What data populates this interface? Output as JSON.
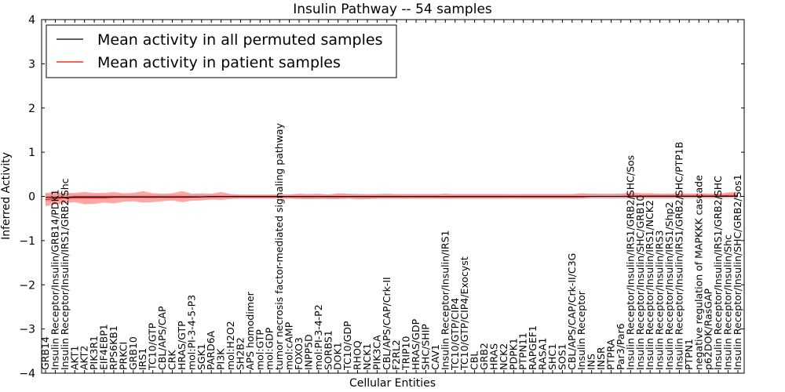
{
  "chart_data": {
    "type": "line",
    "title": "Insulin Pathway -- 54 samples",
    "xlabel": "Cellular Entities",
    "ylabel": "Inferred Activity",
    "ylim": [
      -4,
      4
    ],
    "yticks": [
      -4,
      -3,
      -2,
      -1,
      0,
      1,
      2,
      3,
      4
    ],
    "grid": false,
    "legend_position": "top-left",
    "categories": [
      "GRB14",
      "Insulin Receptor/Insulin/GRB14/PDK1",
      "Insulin Receptor/Insulin/IRS1/GRB2/Shc",
      "AKT1",
      "AKT2",
      "PIK3R1",
      "EIF4EBP1",
      "RPS6KB1",
      "PRKCI",
      "GRB10",
      "IRS1",
      "TC10/GTP",
      "CBL/APS/CAP",
      "CRK",
      "HRAS/GTP",
      "mol:PI-3-4-5-P3",
      "SGK1",
      "PARD6A",
      "PI3K",
      "mol:H2O2",
      "SH2B2",
      "APS homodimer",
      "mol:GTP",
      "mol:GDP",
      "tumor necrosis factor-mediated signaling pathway",
      "mol:cAMP",
      "FOXO3",
      "INPP5D",
      "mol:PI-3-4-P2",
      "SORBS1",
      "DOK1",
      "TC10/GDP",
      "RHOQ",
      "NCK1",
      "PIK3CA",
      "CBL/APS/CAP/Crk-II",
      "F2RL2",
      "TRIP10",
      "HRAS/GDP",
      "SHC/SHIP",
      "CAV1",
      "Insulin Receptor/Insulin/IRS1",
      "TC10/GTP/CIP4",
      "TC10/GTP/CIP4/Exocyst",
      "CBL",
      "GRB2",
      "HRAS",
      "NCK2",
      "PDPK1",
      "PTPN11",
      "RAPGEF1",
      "RASA1",
      "SHC1",
      "SOS1",
      "CBL/APS/CAP/Crk-II/C3G",
      "Insulin Receptor",
      "INS",
      "INSR",
      "PTPRA",
      "Par3/Par6",
      "Insulin Receptor/Insulin/IRS1/GRB2/SHC/Sos",
      "Insulin Receptor/Insulin/SHC/GRB10",
      "Insulin Receptor/Insulin/IRS1/NCK2",
      "Insulin Receptor/Insulin/IRS3",
      "Insulin Receptor/Insulin/IRS1/Shp2",
      "Insulin Receptor/Insulin/IRS1/GRB2/SHC/PTP1B",
      "PTPN1",
      "negative regulation of MAPKKK cascade",
      "p62DOK/RasGAP",
      "Insulin Receptor/Insulin/IRS1/GRB2/SHC",
      "Insulin Receptor/Insulin/Shc",
      "Insulin Receptor/Insulin/SHC/GRB2/Sos1"
    ],
    "series": [
      {
        "name": "Mean activity in all permuted samples",
        "color": "#000000",
        "values": [
          -0.02,
          -0.02,
          -0.02,
          -0.01,
          -0.01,
          -0.01,
          -0.01,
          -0.01,
          -0.01,
          -0.01,
          -0.01,
          -0.01,
          -0.01,
          -0.01,
          -0.01,
          -0.01,
          -0.01,
          0,
          0,
          0,
          0,
          0,
          0,
          0,
          0,
          0,
          0,
          0,
          0,
          0,
          0,
          0,
          0,
          0,
          0,
          0,
          0,
          0,
          0,
          0,
          0,
          0,
          0,
          0,
          0,
          0,
          0,
          0,
          0,
          0,
          0,
          0,
          0,
          0,
          0,
          0,
          0,
          0,
          0,
          0,
          0,
          0,
          0,
          0,
          0,
          0,
          0,
          0,
          0,
          0,
          0,
          0
        ],
        "band_lower": [
          -0.12,
          -0.1,
          -0.08,
          -0.06,
          -0.05,
          -0.05,
          -0.06,
          -0.05,
          -0.04,
          -0.05,
          -0.05,
          -0.06,
          -0.05,
          -0.06,
          -0.05,
          -0.04,
          -0.05,
          -0.05,
          -0.04,
          -0.04,
          -0.04,
          -0.04,
          -0.04,
          -0.04,
          -0.05,
          -0.05,
          -0.05,
          -0.06,
          -0.05,
          -0.05,
          -0.06,
          -0.05,
          -0.08,
          -0.06,
          -0.05,
          -0.05,
          -0.05,
          -0.06,
          -0.05,
          -0.05,
          -0.05,
          -0.06,
          -0.05,
          -0.05,
          -0.05,
          -0.05,
          -0.05,
          -0.05,
          -0.04,
          -0.05,
          -0.05,
          -0.05,
          -0.05,
          -0.05,
          -0.05,
          -0.05,
          -0.05,
          -0.05,
          -0.06,
          -0.05,
          -0.06,
          -0.06,
          -0.06,
          -0.06,
          -0.06,
          -0.06,
          -0.06,
          -0.06,
          -0.06,
          -0.06,
          -0.06,
          -0.06
        ],
        "band_upper": [
          0.05,
          0.04,
          0.04,
          0.04,
          0.04,
          0.04,
          0.04,
          0.04,
          0.04,
          0.04,
          0.04,
          0.04,
          0.04,
          0.04,
          0.04,
          0.04,
          0.04,
          0.04,
          0.04,
          0.04,
          0.04,
          0.04,
          0.04,
          0.04,
          0.05,
          0.05,
          0.05,
          0.05,
          0.05,
          0.05,
          0.05,
          0.05,
          0.06,
          0.05,
          0.05,
          0.05,
          0.05,
          0.05,
          0.05,
          0.05,
          0.05,
          0.05,
          0.05,
          0.05,
          0.05,
          0.05,
          0.05,
          0.05,
          0.04,
          0.05,
          0.05,
          0.05,
          0.05,
          0.05,
          0.05,
          0.05,
          0.05,
          0.05,
          0.05,
          0.05,
          0.05,
          0.05,
          0.05,
          0.05,
          0.05,
          0.05,
          0.05,
          0.05,
          0.05,
          0.05,
          0.05,
          0.05
        ]
      },
      {
        "name": "Mean activity in patient samples",
        "color": "#ff0000",
        "values": [
          -0.07,
          -0.05,
          -0.03,
          -0.03,
          -0.03,
          -0.03,
          -0.03,
          -0.02,
          -0.02,
          -0.02,
          -0.02,
          -0.02,
          -0.02,
          -0.02,
          -0.02,
          -0.02,
          -0.01,
          -0.01,
          -0.01,
          -0.01,
          -0.01,
          -0.01,
          -0.01,
          -0.01,
          -0.01,
          -0.01,
          -0.01,
          -0.01,
          -0.01,
          -0.01,
          -0.01,
          -0.01,
          -0.01,
          -0.01,
          -0.01,
          -0.01,
          -0.01,
          -0.01,
          -0.01,
          -0.01,
          -0.01,
          -0.01,
          -0.01,
          -0.01,
          -0.01,
          -0.01,
          -0.01,
          -0.01,
          -0.01,
          -0.01,
          -0.01,
          -0.01,
          -0.01,
          -0.01,
          -0.01,
          -0.01,
          0,
          0,
          0,
          0,
          0.01,
          0.01,
          0.01,
          0.01,
          0.01,
          0.01,
          0.01,
          0.01,
          0.01,
          0.01,
          0.02,
          0.02
        ],
        "band_lower": [
          -0.22,
          -0.18,
          -0.15,
          -0.13,
          -0.18,
          -0.17,
          -0.14,
          -0.16,
          -0.12,
          -0.11,
          -0.14,
          -0.13,
          -0.11,
          -0.09,
          -0.13,
          -0.1,
          -0.09,
          -0.07,
          -0.08,
          -0.06,
          -0.05,
          -0.05,
          -0.05,
          -0.05,
          -0.05,
          -0.05,
          -0.06,
          -0.06,
          -0.06,
          -0.06,
          -0.06,
          -0.05,
          -0.06,
          -0.06,
          -0.05,
          -0.05,
          -0.05,
          -0.05,
          -0.05,
          -0.05,
          -0.05,
          -0.05,
          -0.05,
          -0.05,
          -0.05,
          -0.05,
          -0.05,
          -0.05,
          -0.05,
          -0.05,
          -0.05,
          -0.05,
          -0.05,
          -0.05,
          -0.05,
          -0.05,
          -0.04,
          -0.04,
          -0.04,
          -0.04,
          -0.04,
          -0.04,
          -0.04,
          -0.04,
          -0.04,
          -0.03,
          -0.03,
          -0.03,
          -0.03,
          -0.03,
          -0.02,
          -0.02
        ],
        "band_upper": [
          0.08,
          0.09,
          0.08,
          0.08,
          0.1,
          0.08,
          0.08,
          0.1,
          0.07,
          0.08,
          0.12,
          0.07,
          0.06,
          0.07,
          0.12,
          0.06,
          0.07,
          0.06,
          0.1,
          0.05,
          0.04,
          0.04,
          0.04,
          0.04,
          0.04,
          0.04,
          0.06,
          0.05,
          0.06,
          0.04,
          0.07,
          0.06,
          0.05,
          0.05,
          0.05,
          0.06,
          0.05,
          0.05,
          0.05,
          0.05,
          0.05,
          0.06,
          0.05,
          0.05,
          0.05,
          0.05,
          0.05,
          0.05,
          0.05,
          0.05,
          0.05,
          0.05,
          0.05,
          0.05,
          0.05,
          0.07,
          0.06,
          0.06,
          0.06,
          0.06,
          0.09,
          0.07,
          0.07,
          0.06,
          0.06,
          0.07,
          0.06,
          0.07,
          0.06,
          0.06,
          0.09,
          0.1
        ]
      }
    ]
  }
}
